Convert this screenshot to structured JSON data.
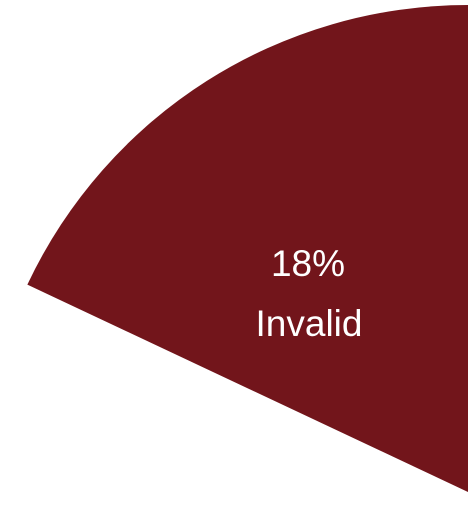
{
  "chart_data": {
    "type": "pie",
    "slices": [
      {
        "label": "Invalid",
        "value": 18,
        "value_label": "18%",
        "color": "#72151b"
      }
    ]
  }
}
